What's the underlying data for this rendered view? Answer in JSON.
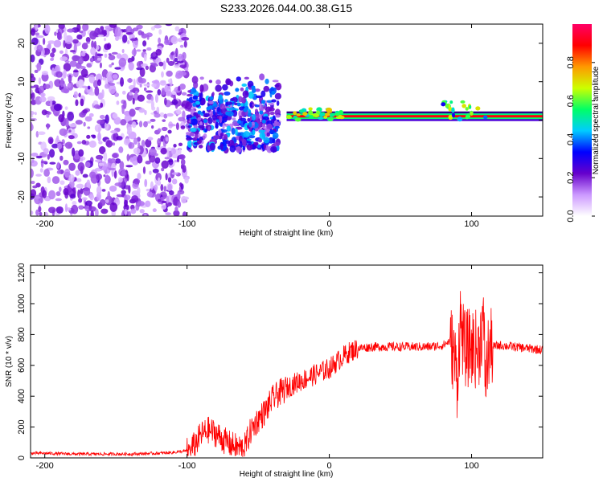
{
  "chart_data": [
    {
      "type": "heatmap",
      "title": "S233.2026.044.00.38.G15",
      "xlabel": "Height of straight line (km)",
      "ylabel": "Frequency (Hz)",
      "xlim": [
        -210,
        150
      ],
      "ylim": [
        -25,
        25
      ],
      "xticks": [
        -200,
        -100,
        0,
        100
      ],
      "yticks": [
        -20,
        -10,
        0,
        10,
        20
      ],
      "colorbar": {
        "label": "Normalized spectral amplitude",
        "range": [
          0,
          1
        ],
        "ticks": [
          "0.0",
          "0.2",
          "0.4",
          "0.6",
          "0.8"
        ],
        "colors": [
          "#ffffff",
          "#cc99ff",
          "#6600cc",
          "#0000ff",
          "#00ccff",
          "#00ff66",
          "#ccff00",
          "#ff9900",
          "#ff0000",
          "#ff0066"
        ]
      },
      "features": [
        {
          "name": "scattered noise",
          "x_range": [
            -210,
            -100
          ],
          "freq_range": [
            -25,
            25
          ],
          "amplitude": 0.15
        },
        {
          "name": "transition blobs",
          "x_range": [
            -100,
            -35
          ],
          "freq_range": [
            -8,
            12
          ],
          "amplitude": 0.3
        },
        {
          "name": "stable tone",
          "x_range": [
            -30,
            150
          ],
          "freq_hz": 1,
          "amplitude": 0.9
        }
      ]
    },
    {
      "type": "line",
      "xlabel": "Height of straight line (km)",
      "ylabel": "SNR (10 * v/v)",
      "xlim": [
        -210,
        150
      ],
      "ylim": [
        0,
        1250
      ],
      "xticks": [
        -200,
        -100,
        0,
        100
      ],
      "yticks": [
        0,
        200,
        400,
        600,
        800,
        1000,
        1200
      ],
      "color": "#ff0000",
      "series": [
        {
          "name": "SNR envelope",
          "x": [
            -210,
            -200,
            -180,
            -160,
            -140,
            -120,
            -110,
            -100,
            -95,
            -90,
            -85,
            -80,
            -75,
            -70,
            -65,
            -60,
            -55,
            -50,
            -45,
            -40,
            -35,
            -30,
            -25,
            -20,
            -15,
            -10,
            -5,
            0,
            5,
            10,
            15,
            20,
            30,
            40,
            50,
            60,
            70,
            80,
            85,
            88,
            90,
            92,
            95,
            100,
            105,
            108,
            110,
            112,
            115,
            120,
            130,
            140,
            150
          ],
          "values": [
            30,
            30,
            25,
            25,
            25,
            30,
            35,
            45,
            80,
            150,
            180,
            160,
            120,
            90,
            70,
            60,
            180,
            250,
            300,
            380,
            420,
            450,
            480,
            500,
            520,
            540,
            560,
            580,
            620,
            660,
            690,
            710,
            720,
            720,
            720,
            720,
            720,
            730,
            760,
            650,
            500,
            900,
            700,
            720,
            700,
            900,
            500,
            700,
            720,
            730,
            720,
            710,
            700
          ]
        }
      ]
    }
  ]
}
